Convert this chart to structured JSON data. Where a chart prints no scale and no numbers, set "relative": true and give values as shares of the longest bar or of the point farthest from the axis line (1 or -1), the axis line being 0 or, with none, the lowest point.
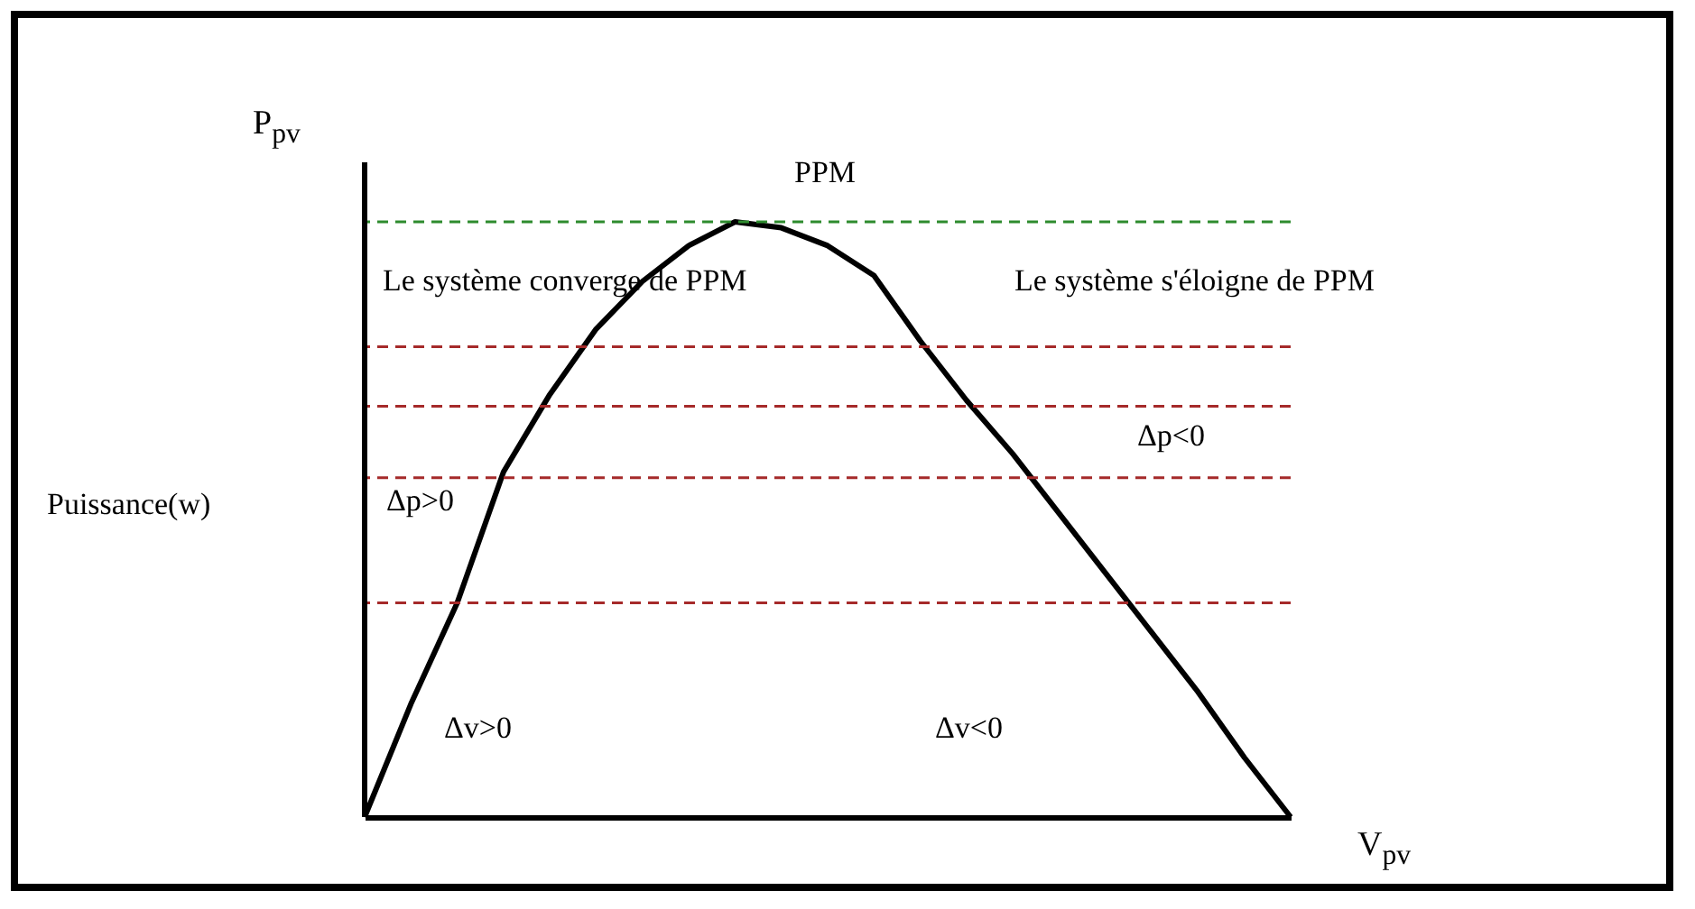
{
  "chart_data": {
    "type": "line",
    "relative": true,
    "xlabel": "V$_{pv}$",
    "ylabel": "P$_{pv}$",
    "categories": [
      null,
      null,
      null,
      null,
      null,
      null,
      null,
      null,
      null,
      null,
      null,
      null,
      null,
      null,
      null,
      null,
      null,
      null,
      null,
      null,
      null
    ],
    "series": [
      {
        "color": "#000000",
        "values": [
          0,
          0.19,
          0.36,
          0.58,
          0.71,
          0.82,
          0.9,
          0.96,
          1,
          0.99,
          0.96,
          0.91,
          0.8,
          0.7,
          0.61,
          0.51,
          0.41,
          0.31,
          0.21,
          0.1,
          0
        ]
      }
    ],
    "ref_lines": [
      {
        "axis": "y",
        "value": 1,
        "color": "#2e8b2e",
        "line_style": "dashed"
      },
      {
        "axis": "y",
        "value": 0.69,
        "color": "#a52a2a",
        "line_style": "dashed"
      },
      {
        "axis": "y",
        "value": 0.36,
        "color": "#a52a2a",
        "line_style": "dashed"
      },
      {
        "axis": "y",
        "value": 0.79,
        "color": "#a52a2a",
        "line_style": "dashed"
      },
      {
        "axis": "y",
        "value": 0.57,
        "color": "#a52a2a",
        "line_style": "dashed"
      }
    ],
    "annotations": [
      "PPM",
      "Le système converge de PPM",
      "Le système s'éloigne de PPM",
      "Puissance(w)",
      "Δp>0",
      "Δp<0",
      "Δv>0",
      "Δv<0"
    ]
  }
}
